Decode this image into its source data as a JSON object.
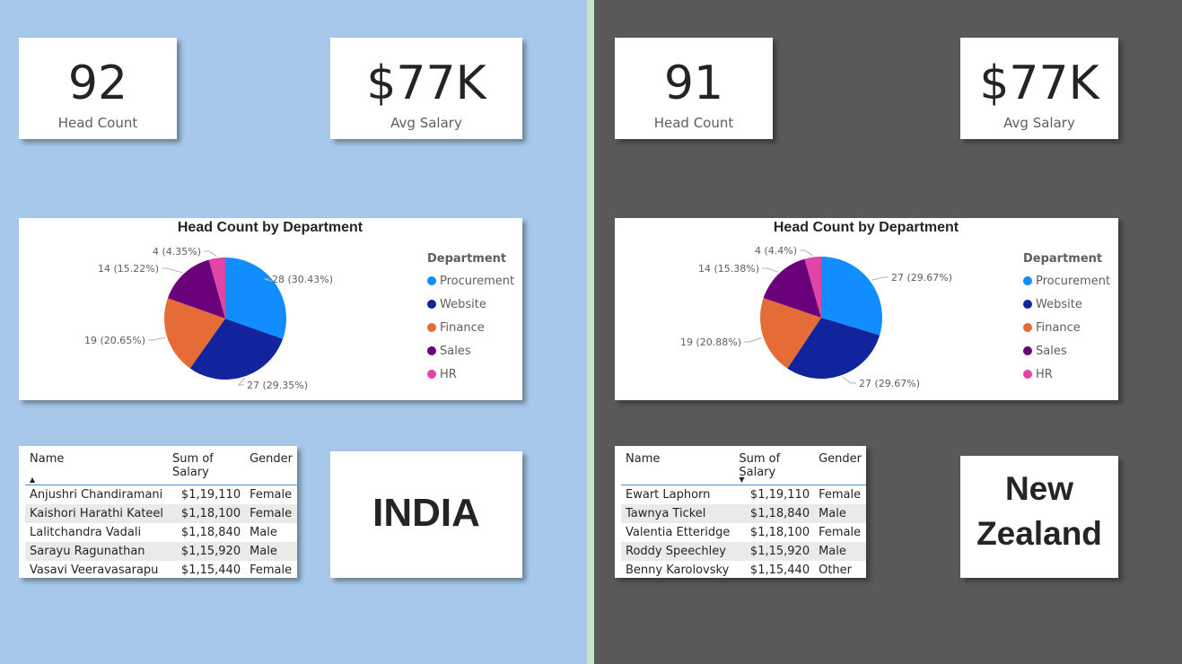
{
  "colors": {
    "left_background": "#a7c8ea",
    "right_background": "#595959",
    "divider": "#c3e6c8",
    "procurement": "#118dff",
    "website": "#12239e",
    "finance": "#e66c37",
    "sales": "#6b007b",
    "hr": "#e044a7"
  },
  "left": {
    "head_count": {
      "value": "92",
      "label": "Head Count"
    },
    "avg_salary": {
      "value": "$77K",
      "label": "Avg Salary"
    },
    "country": "INDIA",
    "table": {
      "headers": [
        "Name",
        "Sum of Salary",
        "Gender"
      ],
      "sort_indicator": "▲",
      "rows": [
        [
          "Anjushri Chandiramani",
          "$1,19,110",
          "Female"
        ],
        [
          "Kaishori Harathi Kateel",
          "$1,18,100",
          "Female"
        ],
        [
          "Lalitchandra Vadali",
          "$1,18,840",
          "Male"
        ],
        [
          "Sarayu Ragunathan",
          "$1,15,920",
          "Male"
        ],
        [
          "Vasavi Veeravasarapu",
          "$1,15,440",
          "Female"
        ]
      ]
    }
  },
  "right": {
    "head_count": {
      "value": "91",
      "label": "Head Count"
    },
    "avg_salary": {
      "value": "$77K",
      "label": "Avg Salary"
    },
    "country_line1": "New",
    "country_line2": "Zealand",
    "table": {
      "headers": [
        "Name",
        "Sum of Salary",
        "Gender"
      ],
      "sort_indicator": "▼",
      "rows": [
        [
          "Ewart Laphorn",
          "$1,19,110",
          "Female"
        ],
        [
          "Tawnya Tickel",
          "$1,18,840",
          "Male"
        ],
        [
          "Valentia Etteridge",
          "$1,18,100",
          "Female"
        ],
        [
          "Roddy Speechley",
          "$1,15,920",
          "Male"
        ],
        [
          "Benny Karolovsky",
          "$1,15,440",
          "Other"
        ]
      ]
    }
  },
  "chart_data": [
    {
      "type": "pie",
      "title": "Head Count by Department",
      "legend_title": "Department",
      "legend_placement": "right",
      "categories": [
        "Procurement",
        "Website",
        "Finance",
        "Sales",
        "HR"
      ],
      "values": [
        28,
        27,
        19,
        14,
        4
      ],
      "data_labels": [
        "28 (30.43%)",
        "27 (29.35%)",
        "19 (20.65%)",
        "14 (15.22%)",
        "4 (4.35%)"
      ]
    },
    {
      "type": "pie",
      "title": "Head Count by Department",
      "legend_title": "Department",
      "legend_placement": "right",
      "categories": [
        "Procurement",
        "Website",
        "Finance",
        "Sales",
        "HR"
      ],
      "values": [
        27,
        27,
        19,
        14,
        4
      ],
      "data_labels": [
        "27 (29.67%)",
        "27 (29.67%)",
        "19 (20.88%)",
        "14 (15.38%)",
        "4 (4.4%)"
      ]
    }
  ]
}
